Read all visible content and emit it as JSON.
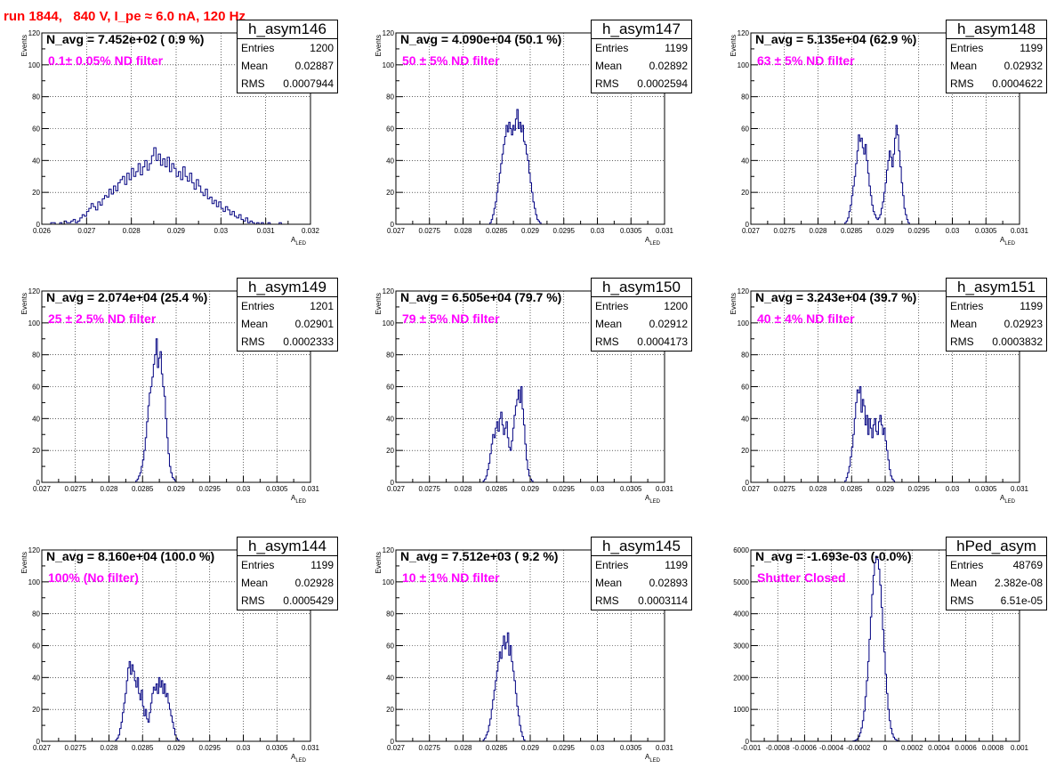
{
  "page_title": "run 1844,   840 V, I_pe ≈ 6.0 nA, 120 Hz",
  "stat_labels": {
    "entries": "Entries",
    "mean": "Mean",
    "rms": "RMS"
  },
  "colors": {
    "hist": "#000080",
    "title": "#ff0000",
    "note": "#ff00ff"
  },
  "chart_data": [
    {
      "type": "histogram",
      "name": "h_asym146",
      "entries": "1200",
      "mean": "0.02887",
      "rms": "0.0007944",
      "navg": "N_avg = 7.452e+02 ( 0.9 %)",
      "note": "0.1± 0.05% ND filter",
      "xlabel": "A",
      "xlabel_sub": "LED",
      "ylabel": "Events",
      "xlim": [
        0.026,
        0.032
      ],
      "ylim": [
        0,
        120
      ],
      "xticks": [
        "0.026",
        "0.027",
        "0.028",
        "0.029",
        "0.03",
        "0.031",
        "0.032"
      ],
      "yticks": [
        "0",
        "20",
        "40",
        "60",
        "80",
        "100",
        "120"
      ],
      "x0": 0.0262,
      "bin_width": 5e-05,
      "values": [
        1,
        1,
        0,
        0,
        1,
        0,
        2,
        1,
        1,
        2,
        3,
        1,
        2,
        4,
        6,
        5,
        8,
        10,
        13,
        11,
        9,
        14,
        12,
        16,
        18,
        17,
        22,
        19,
        24,
        21,
        26,
        28,
        30,
        25,
        32,
        28,
        35,
        30,
        33,
        38,
        31,
        36,
        40,
        34,
        38,
        43,
        48,
        40,
        44,
        37,
        41,
        36,
        42,
        33,
        38,
        35,
        30,
        33,
        28,
        36,
        30,
        27,
        32,
        26,
        22,
        28,
        24,
        20,
        18,
        22,
        16,
        17,
        13,
        15,
        11,
        14,
        10,
        8,
        11,
        9,
        6,
        8,
        5,
        4,
        6,
        3,
        2,
        4,
        1,
        2,
        1,
        0,
        1,
        0,
        1,
        0,
        0,
        1,
        0,
        0,
        0,
        0,
        1
      ]
    },
    {
      "type": "histogram",
      "name": "h_asym147",
      "entries": "1199",
      "mean": "0.02892",
      "rms": "0.0002594",
      "navg": "N_avg = 4.090e+04 (50.1 %)",
      "note": "50 ± 5% ND filter",
      "xlabel": "A",
      "xlabel_sub": "LED",
      "ylabel": "Events",
      "xlim": [
        0.027,
        0.031
      ],
      "ylim": [
        0,
        120
      ],
      "xticks": [
        "0.027",
        "0.0275",
        "0.028",
        "0.0285",
        "0.029",
        "0.0295",
        "0.03",
        "0.0305",
        "0.031"
      ],
      "yticks": [
        "0",
        "20",
        "40",
        "60",
        "80",
        "100",
        "120"
      ],
      "x0": 0.0284,
      "bin_width": 2e-05,
      "values": [
        1,
        3,
        6,
        10,
        14,
        20,
        26,
        32,
        38,
        44,
        50,
        55,
        62,
        58,
        64,
        60,
        56,
        62,
        59,
        66,
        72,
        60,
        64,
        58,
        62,
        52,
        50,
        44,
        40,
        32,
        26,
        20,
        14,
        10,
        6,
        3,
        2,
        1
      ]
    },
    {
      "type": "histogram",
      "name": "h_asym148",
      "entries": "1199",
      "mean": "0.02932",
      "rms": "0.0004622",
      "navg": "N_avg = 5.135e+04 (62.9 %)",
      "note": "63 ± 5% ND filter",
      "xlabel": "A",
      "xlabel_sub": "LED",
      "ylabel": "Events",
      "xlim": [
        0.027,
        0.031
      ],
      "ylim": [
        0,
        120
      ],
      "xticks": [
        "0.027",
        "0.0275",
        "0.028",
        "0.0285",
        "0.029",
        "0.0295",
        "0.03",
        "0.0305",
        "0.031"
      ],
      "yticks": [
        "0",
        "20",
        "40",
        "60",
        "80",
        "100",
        "120"
      ],
      "x0": 0.0284,
      "bin_width": 2e-05,
      "values": [
        1,
        2,
        4,
        8,
        12,
        18,
        24,
        30,
        38,
        46,
        56,
        52,
        54,
        48,
        44,
        50,
        40,
        32,
        24,
        18,
        12,
        8,
        6,
        4,
        3,
        4,
        6,
        10,
        14,
        20,
        26,
        34,
        40,
        46,
        42,
        36,
        44,
        54,
        62,
        56,
        46,
        36,
        26,
        18,
        10,
        6,
        3,
        1
      ]
    },
    {
      "type": "histogram",
      "name": "h_asym149",
      "entries": "1201",
      "mean": "0.02901",
      "rms": "0.0002333",
      "navg": "N_avg = 2.074e+04 (25.4 %)",
      "note": "25 ± 2.5% ND filter",
      "xlabel": "A",
      "xlabel_sub": "LED",
      "ylabel": "Events",
      "xlim": [
        0.027,
        0.031
      ],
      "ylim": [
        0,
        120
      ],
      "xticks": [
        "0.027",
        "0.0275",
        "0.028",
        "0.0285",
        "0.029",
        "0.0295",
        "0.03",
        "0.0305",
        "0.031"
      ],
      "yticks": [
        "0",
        "20",
        "40",
        "60",
        "80",
        "100",
        "120"
      ],
      "x0": 0.0284,
      "bin_width": 2e-05,
      "values": [
        1,
        2,
        4,
        6,
        10,
        14,
        20,
        28,
        38,
        48,
        56,
        60,
        66,
        74,
        80,
        90,
        72,
        78,
        82,
        68,
        60,
        54,
        40,
        28,
        18,
        10,
        6,
        3,
        2,
        1
      ]
    },
    {
      "type": "histogram",
      "name": "h_asym150",
      "entries": "1200",
      "mean": "0.02912",
      "rms": "0.0004173",
      "navg": "N_avg = 6.505e+04 (79.7 %)",
      "note": "79 ± 5% ND filter",
      "xlabel": "A",
      "xlabel_sub": "LED",
      "ylabel": "Events",
      "xlim": [
        0.027,
        0.031
      ],
      "ylim": [
        0,
        120
      ],
      "xticks": [
        "0.027",
        "0.0275",
        "0.028",
        "0.0285",
        "0.029",
        "0.0295",
        "0.03",
        "0.0305",
        "0.031"
      ],
      "yticks": [
        "0",
        "20",
        "40",
        "60",
        "80",
        "100",
        "120"
      ],
      "x0": 0.0283,
      "bin_width": 2e-05,
      "values": [
        1,
        2,
        4,
        8,
        12,
        18,
        24,
        30,
        28,
        34,
        38,
        32,
        40,
        44,
        36,
        30,
        34,
        38,
        28,
        22,
        20,
        26,
        34,
        42,
        48,
        52,
        58,
        50,
        60,
        46,
        36,
        24,
        14,
        8,
        4,
        2,
        1
      ]
    },
    {
      "type": "histogram",
      "name": "h_asym151",
      "entries": "1199",
      "mean": "0.02923",
      "rms": "0.0003832",
      "navg": "N_avg = 3.243e+04 (39.7 %)",
      "note": "40 ± 4% ND filter",
      "xlabel": "A",
      "xlabel_sub": "LED",
      "ylabel": "Events",
      "xlim": [
        0.027,
        0.031
      ],
      "ylim": [
        0,
        120
      ],
      "xticks": [
        "0.027",
        "0.0275",
        "0.028",
        "0.0285",
        "0.029",
        "0.0295",
        "0.03",
        "0.0305",
        "0.031"
      ],
      "yticks": [
        "0",
        "20",
        "40",
        "60",
        "80",
        "100",
        "120"
      ],
      "x0": 0.0284,
      "bin_width": 2e-05,
      "values": [
        1,
        3,
        6,
        10,
        16,
        22,
        30,
        40,
        50,
        58,
        56,
        60,
        44,
        52,
        48,
        36,
        42,
        30,
        40,
        34,
        28,
        36,
        40,
        32,
        30,
        38,
        42,
        36,
        30,
        34,
        26,
        20,
        14,
        8,
        4,
        2,
        1
      ]
    },
    {
      "type": "histogram",
      "name": "h_asym144",
      "entries": "1199",
      "mean": "0.02928",
      "rms": "0.0005429",
      "navg": "N_avg = 8.160e+04 (100.0 %)",
      "note": "100% (No filter)",
      "xlabel": "A",
      "xlabel_sub": "LED",
      "ylabel": "Events",
      "xlim": [
        0.027,
        0.031
      ],
      "ylim": [
        0,
        120
      ],
      "xticks": [
        "0.027",
        "0.0275",
        "0.028",
        "0.0285",
        "0.029",
        "0.0295",
        "0.03",
        "0.0305",
        "0.031"
      ],
      "yticks": [
        "0",
        "20",
        "40",
        "60",
        "80",
        "100",
        "120"
      ],
      "x0": 0.0281,
      "bin_width": 2e-05,
      "values": [
        1,
        2,
        4,
        8,
        12,
        18,
        24,
        30,
        38,
        46,
        50,
        42,
        48,
        44,
        38,
        34,
        40,
        30,
        26,
        32,
        22,
        16,
        20,
        14,
        12,
        18,
        24,
        30,
        34,
        32,
        36,
        30,
        40,
        34,
        38,
        30,
        36,
        28,
        30,
        24,
        20,
        16,
        12,
        8,
        4,
        2,
        1
      ]
    },
    {
      "type": "histogram",
      "name": "h_asym145",
      "entries": "1199",
      "mean": "0.02893",
      "rms": "0.0003114",
      "navg": "N_avg = 7.512e+03 ( 9.2 %)",
      "note": "10 ± 1% ND filter",
      "xlabel": "A",
      "xlabel_sub": "LED",
      "ylabel": "Events",
      "xlim": [
        0.027,
        0.031
      ],
      "ylim": [
        0,
        120
      ],
      "xticks": [
        "0.027",
        "0.0275",
        "0.028",
        "0.0285",
        "0.029",
        "0.0295",
        "0.03",
        "0.0305",
        "0.031"
      ],
      "yticks": [
        "0",
        "20",
        "40",
        "60",
        "80",
        "100",
        "120"
      ],
      "x0": 0.0283,
      "bin_width": 2e-05,
      "values": [
        1,
        2,
        4,
        6,
        10,
        14,
        20,
        26,
        32,
        38,
        44,
        50,
        56,
        52,
        60,
        66,
        58,
        62,
        68,
        54,
        60,
        50,
        44,
        38,
        30,
        22,
        16,
        10,
        6,
        3,
        1
      ]
    },
    {
      "type": "histogram",
      "name": "hPed_asym",
      "entries": "48769",
      "mean": "2.382e-08",
      "rms": "6.51e-05",
      "navg": "N_avg = -1.693e-03 (-0.0%)",
      "note": "Shutter Closed",
      "xlabel": "",
      "xlabel_sub": "",
      "ylabel": "",
      "xlim": [
        -0.001,
        0.001
      ],
      "ylim": [
        0,
        6000
      ],
      "xticks": [
        "-0.001",
        "-0.0008",
        "-0.0006",
        "-0.0004",
        "-0.0002",
        "0",
        "0.0002",
        "0.0004",
        "0.0006",
        "0.0008",
        "0.001"
      ],
      "yticks": [
        "0",
        "1000",
        "2000",
        "3000",
        "4000",
        "5000",
        "6000"
      ],
      "x0": -0.00024,
      "bin_width": 1e-05,
      "values": [
        10,
        20,
        40,
        80,
        150,
        260,
        420,
        650,
        950,
        1400,
        1900,
        2500,
        3200,
        3900,
        4600,
        5200,
        5600,
        5800,
        5700,
        5400,
        4900,
        4200,
        3500,
        2800,
        2100,
        1500,
        1000,
        650,
        400,
        230,
        130,
        70,
        35,
        15,
        8
      ]
    }
  ]
}
